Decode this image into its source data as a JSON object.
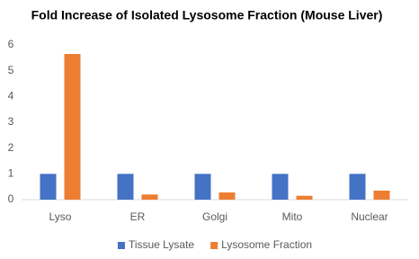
{
  "chart_data": {
    "type": "bar",
    "title": "Fold Increase of Isolated Lysosome Fraction (Mouse Liver)",
    "categories": [
      "Lyso",
      "ER",
      "Golgi",
      "Mito",
      "Nuclear"
    ],
    "series": [
      {
        "name": "Tissue Lysate",
        "color": "#4472c4",
        "values": [
          1,
          1,
          1,
          1,
          1
        ]
      },
      {
        "name": "Lysosome Fraction",
        "color": "#ed7d31",
        "values": [
          5.65,
          0.2,
          0.28,
          0.15,
          0.35
        ]
      }
    ],
    "ylim": [
      0,
      6
    ],
    "yticks": [
      0,
      1,
      2,
      3,
      4,
      5,
      6
    ],
    "grid": false,
    "legend": "bottom"
  }
}
